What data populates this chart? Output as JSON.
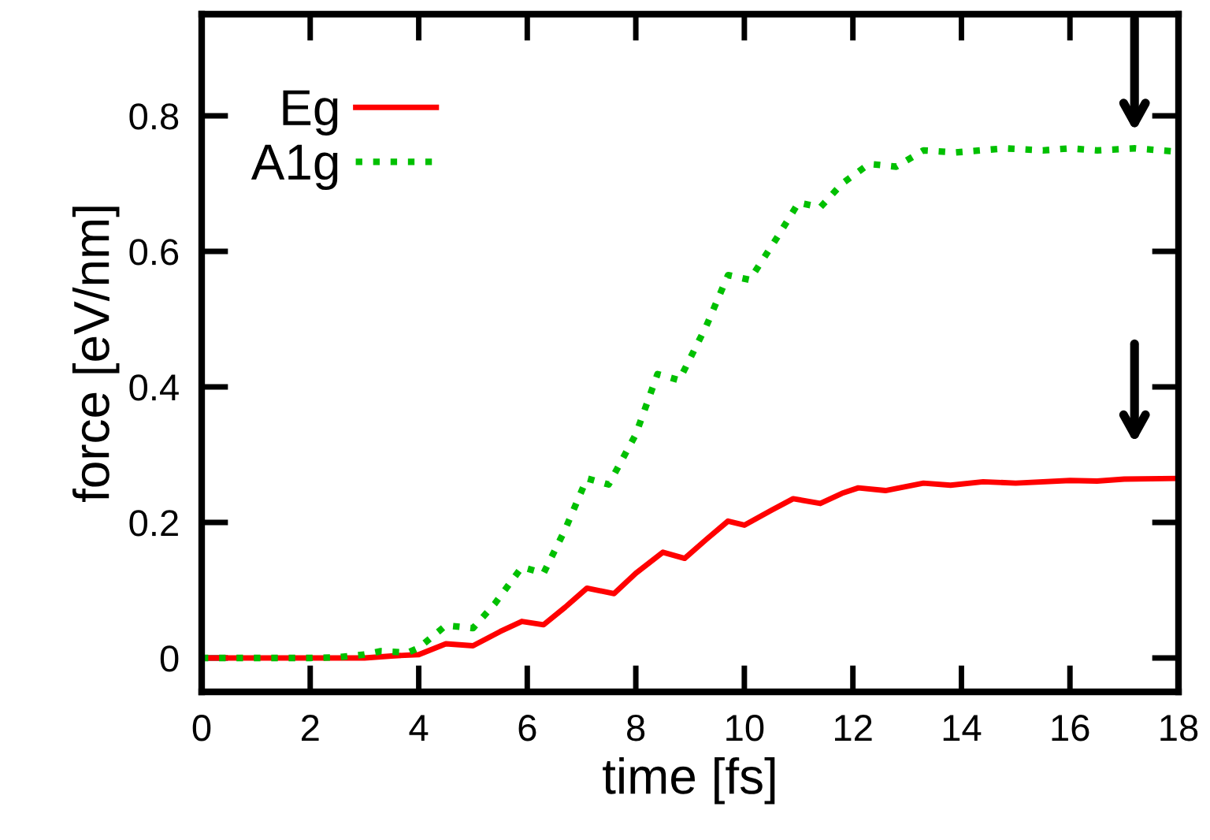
{
  "chart_data": {
    "type": "line",
    "xlabel": "time [fs]",
    "ylabel": "force [eV/nm]",
    "xlim": [
      0,
      18
    ],
    "ylim": [
      -0.05,
      0.95
    ],
    "xticks": [
      0,
      2,
      4,
      6,
      8,
      10,
      12,
      14,
      16,
      18
    ],
    "yticks": [
      0,
      0.2,
      0.4,
      0.6,
      0.8
    ],
    "grid": false,
    "legend": "top left",
    "series": [
      {
        "name": "Eg",
        "color": "#ff0000",
        "line_style": "solid",
        "x": [
          0,
          1,
          2,
          3,
          3.5,
          4.0,
          4.5,
          5.0,
          5.5,
          5.9,
          6.3,
          6.7,
          7.1,
          7.6,
          8.0,
          8.5,
          8.9,
          9.3,
          9.7,
          10.0,
          10.5,
          10.9,
          11.4,
          11.8,
          12.1,
          12.6,
          13.3,
          13.8,
          14.4,
          15.0,
          16.0,
          16.5,
          17.0,
          18.0
        ],
        "values": [
          0,
          0,
          0,
          0,
          0.003,
          0.005,
          0.021,
          0.018,
          0.039,
          0.054,
          0.049,
          0.075,
          0.103,
          0.095,
          0.125,
          0.156,
          0.147,
          0.175,
          0.202,
          0.196,
          0.218,
          0.235,
          0.228,
          0.243,
          0.251,
          0.247,
          0.258,
          0.255,
          0.26,
          0.258,
          0.262,
          0.261,
          0.264,
          0.265
        ]
      },
      {
        "name": "A1g",
        "color": "#00c000",
        "line_style": "dotted",
        "x": [
          0,
          1,
          2,
          2.5,
          3.0,
          3.3,
          3.8,
          4.0,
          4.5,
          5.0,
          5.4,
          5.9,
          6.3,
          6.7,
          7.1,
          7.5,
          8.0,
          8.4,
          8.8,
          9.3,
          9.7,
          10.1,
          10.6,
          11.0,
          11.4,
          11.8,
          12.3,
          12.8,
          13.3,
          13.9,
          14.8,
          15.5,
          16.0,
          16.5,
          17.2,
          18.0
        ],
        "values": [
          0,
          0,
          0,
          0.001,
          0.005,
          0.01,
          0.008,
          0.015,
          0.048,
          0.044,
          0.08,
          0.134,
          0.125,
          0.19,
          0.265,
          0.256,
          0.33,
          0.419,
          0.41,
          0.49,
          0.565,
          0.558,
          0.62,
          0.672,
          0.665,
          0.7,
          0.729,
          0.725,
          0.749,
          0.746,
          0.752,
          0.749,
          0.752,
          0.749,
          0.752,
          0.747
        ]
      }
    ]
  }
}
